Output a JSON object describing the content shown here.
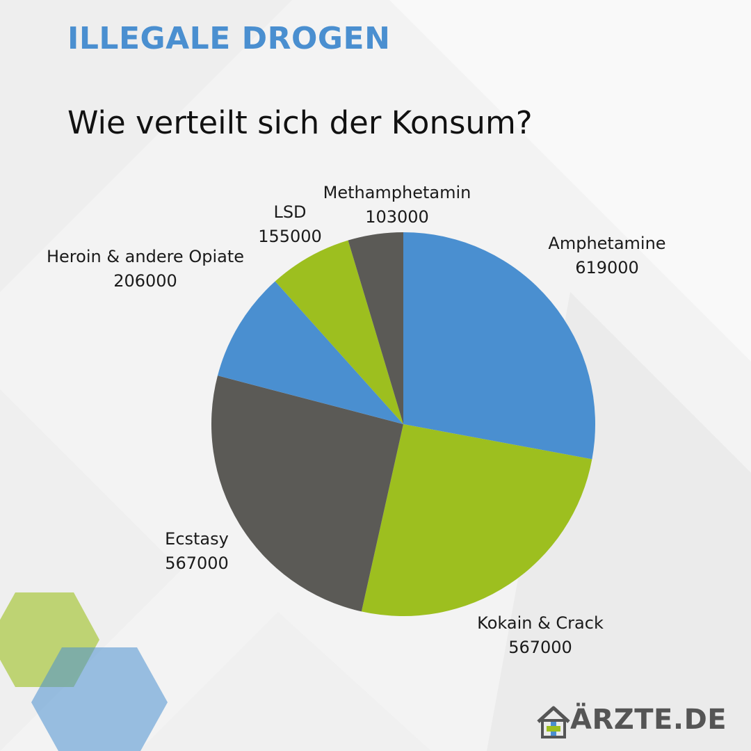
{
  "header": {
    "category": "ILLEGALE DROGEN"
  },
  "chart_data": {
    "type": "pie",
    "title": "Wie verteilt sich der Konsum?",
    "start_angle_deg": 0,
    "direction": "clockwise",
    "slices": [
      {
        "label": "Amphetamine",
        "value": 619000,
        "color": "#4a8fd0"
      },
      {
        "label": "Kokain & Crack",
        "value": 567000,
        "color": "#9dbf1f"
      },
      {
        "label": "Ecstasy",
        "value": 567000,
        "color": "#5b5a56"
      },
      {
        "label": "Heroin & andere Opiate",
        "value": 206000,
        "color": "#4a8fd0"
      },
      {
        "label": "LSD",
        "value": 155000,
        "color": "#9dbf1f"
      },
      {
        "label": "Methamphetamin",
        "value": 103000,
        "color": "#5b5a56"
      }
    ]
  },
  "brand": {
    "name": "ÄRZTE.DE",
    "icon": "house-cross-icon",
    "colors": {
      "blue": "#4a8fd0",
      "green": "#9dbf1f",
      "gray": "#555555"
    }
  }
}
